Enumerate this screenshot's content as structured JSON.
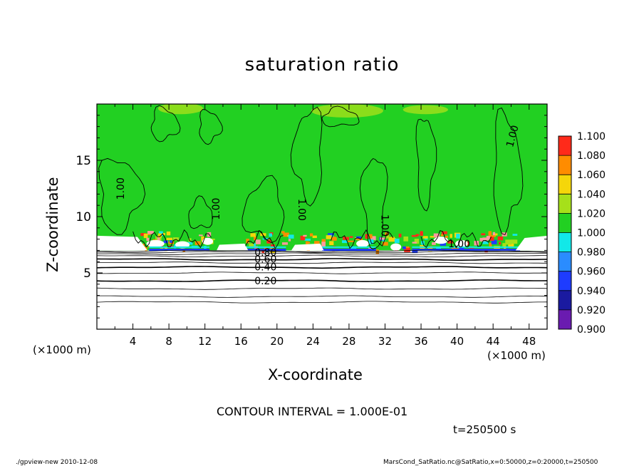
{
  "chart_data": {
    "type": "heatmap",
    "title": "saturation ratio",
    "xlabel": "X-coordinate",
    "ylabel": "Z-coordinate",
    "x_unit_label": "(×1000 m)",
    "xlim": [
      0,
      50
    ],
    "ylim": [
      0,
      20
    ],
    "x_ticks": [
      "4",
      "8",
      "12",
      "16",
      "20",
      "24",
      "28",
      "32",
      "36",
      "40",
      "44",
      "48"
    ],
    "y_ticks": [
      "5",
      "10",
      "15"
    ],
    "colorbar": {
      "levels": [
        "0.900",
        "0.920",
        "0.940",
        "0.960",
        "0.980",
        "1.000",
        "1.020",
        "1.040",
        "1.060",
        "1.080",
        "1.100"
      ],
      "colors": [
        "#6a1bb0",
        "#1a1aa0",
        "#1e3cff",
        "#2a8cff",
        "#12e8e8",
        "#22d022",
        "#a6e01a",
        "#f5d60a",
        "#ff8c00",
        "#ff2a1a",
        "#ff9aa0"
      ]
    },
    "contour_labels": [
      "0.20",
      "0.40",
      "0.60",
      "0.80",
      "1.00",
      "1.00",
      "1.00",
      "1.00",
      "1.00",
      "1.00"
    ],
    "contour_levels_below_cloud": [
      0.2,
      0.4,
      0.6,
      0.8
    ],
    "approx_lower_contour_heights": [
      {
        "level": 0.2,
        "z": 4.3
      },
      {
        "level": 0.4,
        "z": 5.5
      },
      {
        "level": 0.6,
        "z": 6.2
      },
      {
        "level": 0.8,
        "z": 6.8
      }
    ],
    "saturated_layer_base_z": 7.0,
    "dominant_value_above": 1.0
  },
  "annotations": {
    "contour_interval": "CONTOUR INTERVAL = 1.000E-01",
    "time": "t=250500 s",
    "footer_left": "./gpview-new  2010-12-08",
    "footer_right": "MarsCond_SatRatio.nc@SatRatio,x=0:50000,z=0:20000,t=250500"
  }
}
